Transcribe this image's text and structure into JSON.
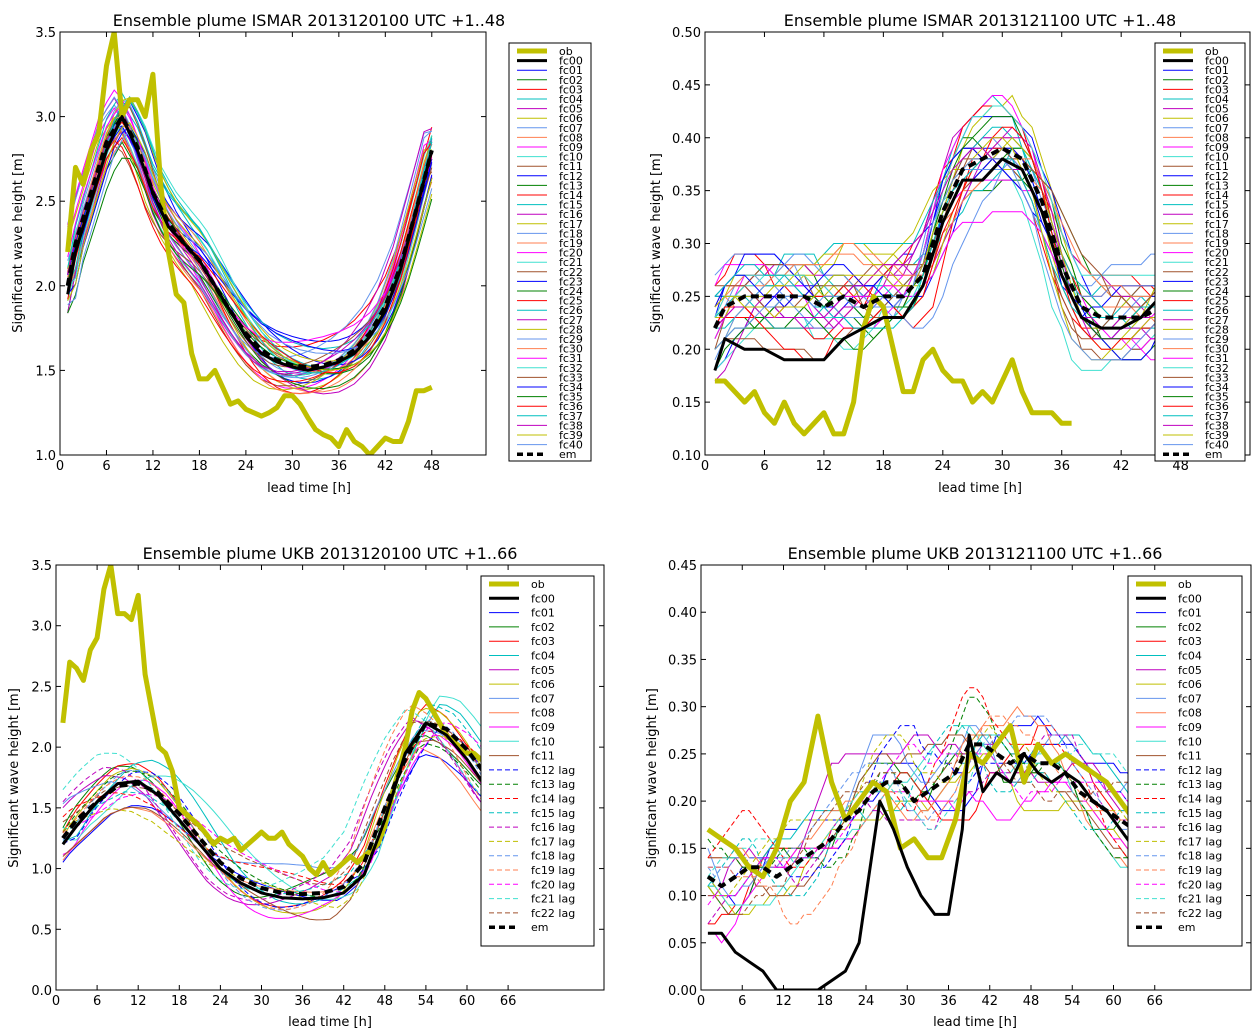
{
  "panels": [
    {
      "title": "Ensemble plume ISMAR 2013120100 UTC +1..48",
      "xlabel": "lead time [h]",
      "ylabel": "Significant wave height [m]",
      "xlim": [
        0,
        55
      ],
      "ylim": [
        1.0,
        3.5
      ],
      "xticks": [
        0,
        6,
        12,
        18,
        24,
        30,
        36,
        42,
        48
      ],
      "yticks": [
        "1.0",
        "1.5",
        "2.0",
        "2.5",
        "3.0",
        "3.5"
      ],
      "legend": [
        "ob",
        "fc00",
        "fc01",
        "fc02",
        "fc03",
        "fc04",
        "fc05",
        "fc06",
        "fc07",
        "fc08",
        "fc09",
        "fc10",
        "fc11",
        "fc12",
        "fc13",
        "fc14",
        "fc15",
        "fc16",
        "fc17",
        "fc18",
        "fc19",
        "fc20",
        "fc21",
        "fc22",
        "fc23",
        "fc24",
        "fc25",
        "fc26",
        "fc27",
        "fc28",
        "fc29",
        "fc30",
        "fc31",
        "fc32",
        "fc33",
        "fc34",
        "fc35",
        "fc36",
        "fc37",
        "fc38",
        "fc39",
        "fc40",
        "em"
      ]
    },
    {
      "title": "Ensemble plume ISMAR 2013121100 UTC +1..48",
      "xlabel": "lead time [h]",
      "ylabel": "Significant wave height [m]",
      "xlim": [
        0,
        55
      ],
      "ylim": [
        0.1,
        0.5
      ],
      "xticks": [
        0,
        6,
        12,
        18,
        24,
        30,
        36,
        42,
        48
      ],
      "yticks": [
        "0.10",
        "0.15",
        "0.20",
        "0.25",
        "0.30",
        "0.35",
        "0.40",
        "0.45",
        "0.50"
      ],
      "legend": [
        "ob",
        "fc00",
        "fc01",
        "fc02",
        "fc03",
        "fc04",
        "fc05",
        "fc06",
        "fc07",
        "fc08",
        "fc09",
        "fc10",
        "fc11",
        "fc12",
        "fc13",
        "fc14",
        "fc15",
        "fc16",
        "fc17",
        "fc18",
        "fc19",
        "fc20",
        "fc21",
        "fc22",
        "fc23",
        "fc24",
        "fc25",
        "fc26",
        "fc27",
        "fc28",
        "fc29",
        "fc30",
        "fc31",
        "fc32",
        "fc33",
        "fc34",
        "fc35",
        "fc36",
        "fc37",
        "fc38",
        "fc39",
        "fc40",
        "em"
      ]
    },
    {
      "title": "Ensemble plume UKB 2013120100 UTC +1..66",
      "xlabel": "lead time [h]",
      "ylabel": "Significant wave height [m]",
      "xlim": [
        0,
        80
      ],
      "ylim": [
        0.0,
        3.5
      ],
      "xticks": [
        0,
        6,
        12,
        18,
        24,
        30,
        36,
        42,
        48,
        54,
        60,
        66
      ],
      "yticks": [
        "0.0",
        "0.5",
        "1.0",
        "1.5",
        "2.0",
        "2.5",
        "3.0",
        "3.5"
      ],
      "legend": [
        "ob",
        "fc00",
        "fc01",
        "fc02",
        "fc03",
        "fc04",
        "fc05",
        "fc06",
        "fc07",
        "fc08",
        "fc09",
        "fc10",
        "fc11",
        "fc12 lag",
        "fc13 lag",
        "fc14 lag",
        "fc15 lag",
        "fc16 lag",
        "fc17 lag",
        "fc18 lag",
        "fc19 lag",
        "fc20 lag",
        "fc21 lag",
        "fc22 lag",
        "em"
      ]
    },
    {
      "title": "Ensemble plume UKB 2013121100 UTC +1..66",
      "xlabel": "lead time [h]",
      "ylabel": "Significant wave height [m]",
      "xlim": [
        0,
        80
      ],
      "ylim": [
        0.0,
        0.45
      ],
      "xticks": [
        0,
        6,
        12,
        18,
        24,
        30,
        36,
        42,
        48,
        54,
        60,
        66
      ],
      "yticks": [
        "0.00",
        "0.05",
        "0.10",
        "0.15",
        "0.20",
        "0.25",
        "0.30",
        "0.35",
        "0.40",
        "0.45"
      ],
      "legend": [
        "ob",
        "fc00",
        "fc01",
        "fc02",
        "fc03",
        "fc04",
        "fc05",
        "fc06",
        "fc07",
        "fc08",
        "fc09",
        "fc10",
        "fc11",
        "fc12 lag",
        "fc13 lag",
        "fc14 lag",
        "fc15 lag",
        "fc16 lag",
        "fc17 lag",
        "fc18 lag",
        "fc19 lag",
        "fc20 lag",
        "fc21 lag",
        "fc22 lag",
        "em"
      ]
    }
  ],
  "colors": {
    "cycle": [
      "#0000ff",
      "#008000",
      "#ff0000",
      "#00bfbf",
      "#bf00bf",
      "#bfbf00",
      "#6495ed",
      "#ff7f50",
      "#ff00ff",
      "#40e0d0",
      "#a0522d"
    ],
    "ob": "#c0c000",
    "fc00": "#000000",
    "em": "#000000"
  },
  "chart_data": [
    {
      "type": "line",
      "title": "Ensemble plume ISMAR 2013120100 UTC +1..48",
      "xlabel": "lead time [h]",
      "ylabel": "Significant wave height [m]",
      "xlim": [
        0,
        55
      ],
      "ylim": [
        1.0,
        3.5
      ],
      "legend_position": "right",
      "members": 41,
      "member_prefix": "fc",
      "ob": {
        "x": [
          1,
          2,
          3,
          4,
          5,
          6,
          7,
          8,
          9,
          10,
          11,
          12,
          13,
          14,
          15,
          16,
          17,
          18,
          19,
          20,
          21,
          22,
          23,
          24,
          25,
          26,
          27,
          28,
          29,
          30,
          31,
          32,
          33,
          34,
          35,
          36,
          37,
          38,
          39,
          40,
          41,
          42,
          43,
          44,
          45,
          46,
          47,
          48
        ],
        "y": [
          2.2,
          2.7,
          2.6,
          2.8,
          2.9,
          3.3,
          3.5,
          3.0,
          3.1,
          3.1,
          3.0,
          3.25,
          2.6,
          2.2,
          1.95,
          1.9,
          1.6,
          1.45,
          1.45,
          1.5,
          1.4,
          1.3,
          1.32,
          1.27,
          1.25,
          1.23,
          1.25,
          1.28,
          1.35,
          1.35,
          1.3,
          1.22,
          1.15,
          1.12,
          1.1,
          1.05,
          1.15,
          1.08,
          1.05,
          1.0,
          1.05,
          1.1,
          1.08,
          1.08,
          1.2,
          1.38,
          1.38,
          1.4
        ]
      },
      "fc00": {
        "x": [
          1,
          2,
          4,
          6,
          8,
          10,
          12,
          14,
          16,
          18,
          20,
          22,
          24,
          26,
          28,
          30,
          32,
          34,
          36,
          38,
          40,
          42,
          44,
          46,
          48
        ],
        "y": [
          1.95,
          2.2,
          2.5,
          2.8,
          3.0,
          2.8,
          2.55,
          2.35,
          2.25,
          2.15,
          2.0,
          1.85,
          1.7,
          1.6,
          1.55,
          1.52,
          1.5,
          1.52,
          1.55,
          1.6,
          1.7,
          1.85,
          2.1,
          2.45,
          2.8
        ]
      },
      "em": {
        "x": [
          1,
          2,
          4,
          6,
          8,
          10,
          12,
          14,
          16,
          18,
          20,
          22,
          24,
          26,
          28,
          30,
          32,
          34,
          36,
          38,
          40,
          42,
          44,
          46,
          48
        ],
        "y": [
          2.0,
          2.25,
          2.55,
          2.85,
          3.0,
          2.82,
          2.55,
          2.37,
          2.25,
          2.15,
          2.0,
          1.85,
          1.72,
          1.62,
          1.56,
          1.53,
          1.52,
          1.53,
          1.56,
          1.62,
          1.72,
          1.88,
          2.12,
          2.45,
          2.8
        ]
      }
    },
    {
      "type": "line",
      "title": "Ensemble plume ISMAR 2013121100 UTC +1..48",
      "xlabel": "lead time [h]",
      "ylabel": "Significant wave height [m]",
      "xlim": [
        0,
        55
      ],
      "ylim": [
        0.1,
        0.5
      ],
      "legend_position": "right",
      "members": 41,
      "member_prefix": "fc",
      "ob": {
        "x": [
          1,
          2,
          3,
          4,
          5,
          6,
          7,
          8,
          9,
          10,
          11,
          12,
          13,
          14,
          15,
          16,
          17,
          18,
          19,
          20,
          21,
          22,
          23,
          24,
          25,
          26,
          27,
          28,
          29,
          30,
          31,
          32,
          33,
          34,
          35,
          36,
          37
        ],
        "y": [
          0.17,
          0.17,
          0.16,
          0.15,
          0.16,
          0.14,
          0.13,
          0.15,
          0.13,
          0.12,
          0.13,
          0.14,
          0.12,
          0.12,
          0.15,
          0.22,
          0.25,
          0.24,
          0.2,
          0.16,
          0.16,
          0.19,
          0.2,
          0.18,
          0.17,
          0.17,
          0.15,
          0.16,
          0.15,
          0.17,
          0.19,
          0.16,
          0.14,
          0.14,
          0.14,
          0.13,
          0.13
        ]
      },
      "fc00": {
        "x": [
          1,
          2,
          4,
          6,
          8,
          10,
          12,
          14,
          16,
          18,
          20,
          22,
          24,
          26,
          28,
          30,
          32,
          34,
          36,
          38,
          40,
          42,
          44,
          46,
          48
        ],
        "y": [
          0.18,
          0.21,
          0.2,
          0.2,
          0.19,
          0.19,
          0.19,
          0.21,
          0.22,
          0.23,
          0.23,
          0.26,
          0.32,
          0.36,
          0.36,
          0.38,
          0.37,
          0.33,
          0.27,
          0.23,
          0.22,
          0.22,
          0.23,
          0.25,
          0.32
        ]
      },
      "em": {
        "x": [
          1,
          2,
          4,
          6,
          8,
          10,
          12,
          14,
          16,
          18,
          20,
          22,
          24,
          26,
          28,
          30,
          32,
          34,
          36,
          38,
          40,
          42,
          44,
          46,
          48
        ],
        "y": [
          0.22,
          0.24,
          0.25,
          0.25,
          0.25,
          0.25,
          0.24,
          0.25,
          0.24,
          0.25,
          0.25,
          0.27,
          0.33,
          0.37,
          0.38,
          0.39,
          0.38,
          0.34,
          0.28,
          0.24,
          0.23,
          0.23,
          0.23,
          0.24,
          0.25
        ]
      }
    },
    {
      "type": "line",
      "title": "Ensemble plume UKB 2013120100 UTC +1..66",
      "xlabel": "lead time [h]",
      "ylabel": "Significant wave height [m]",
      "xlim": [
        0,
        80
      ],
      "ylim": [
        0.0,
        3.5
      ],
      "legend_position": "right",
      "members": 23,
      "lag_from": 12,
      "member_prefix": "fc",
      "ob": {
        "x": [
          1,
          2,
          3,
          4,
          5,
          6,
          7,
          8,
          9,
          10,
          11,
          12,
          13,
          14,
          15,
          16,
          17,
          18,
          19,
          20,
          21,
          22,
          23,
          24,
          25,
          26,
          27,
          28,
          29,
          30,
          31,
          32,
          33,
          34,
          35,
          36,
          37,
          38,
          39,
          40,
          41,
          42,
          43,
          44,
          45,
          46,
          47,
          48,
          49,
          50,
          51,
          52,
          53,
          54,
          55,
          56,
          57,
          58,
          59,
          60,
          61,
          62,
          63,
          64,
          65,
          66
        ],
        "y": [
          2.2,
          2.7,
          2.65,
          2.55,
          2.8,
          2.9,
          3.3,
          3.5,
          3.1,
          3.1,
          3.05,
          3.25,
          2.6,
          2.3,
          2.0,
          1.95,
          1.8,
          1.5,
          1.45,
          1.4,
          1.35,
          1.28,
          1.2,
          1.25,
          1.22,
          1.25,
          1.15,
          1.2,
          1.25,
          1.3,
          1.25,
          1.25,
          1.3,
          1.2,
          1.15,
          1.1,
          1.0,
          0.95,
          1.05,
          0.95,
          1.0,
          1.05,
          1.1,
          1.05,
          1.1,
          1.15,
          1.2,
          1.35,
          1.6,
          1.8,
          2.0,
          2.3,
          2.45,
          2.4,
          2.3,
          2.2,
          2.1,
          2.05,
          2.0,
          1.95,
          1.95,
          1.9,
          1.9,
          1.85,
          1.8,
          1.8
        ]
      },
      "fc00": {
        "x": [
          1,
          3,
          6,
          9,
          12,
          15,
          18,
          21,
          24,
          27,
          30,
          33,
          36,
          39,
          42,
          45,
          48,
          51,
          54,
          57,
          60,
          63,
          66
        ],
        "y": [
          1.2,
          1.35,
          1.55,
          1.7,
          1.72,
          1.6,
          1.4,
          1.2,
          1.0,
          0.88,
          0.8,
          0.76,
          0.75,
          0.76,
          0.8,
          0.95,
          1.4,
          1.95,
          2.2,
          2.1,
          1.9,
          1.65,
          1.4
        ]
      },
      "em": {
        "x": [
          1,
          3,
          6,
          9,
          12,
          15,
          18,
          21,
          24,
          27,
          30,
          33,
          36,
          39,
          42,
          45,
          48,
          51,
          54,
          57,
          60,
          63,
          66
        ],
        "y": [
          1.25,
          1.4,
          1.55,
          1.68,
          1.7,
          1.62,
          1.45,
          1.25,
          1.05,
          0.92,
          0.84,
          0.8,
          0.79,
          0.8,
          0.85,
          1.05,
          1.5,
          1.9,
          2.2,
          2.15,
          1.98,
          1.75,
          1.55
        ]
      }
    },
    {
      "type": "line",
      "title": "Ensemble plume UKB 2013121100 UTC +1..66",
      "xlabel": "lead time [h]",
      "ylabel": "Significant wave height [m]",
      "xlim": [
        0,
        80
      ],
      "ylim": [
        0.0,
        0.45
      ],
      "legend_position": "right",
      "members": 23,
      "lag_from": 12,
      "member_prefix": "fc",
      "ob": {
        "x": [
          1,
          3,
          5,
          7,
          9,
          11,
          13,
          15,
          17,
          19,
          21,
          23,
          25,
          27,
          29,
          31,
          33,
          35,
          37,
          39,
          41,
          43,
          45,
          47,
          49,
          51,
          53,
          55,
          57,
          59,
          61,
          63,
          65,
          66
        ],
        "y": [
          0.17,
          0.16,
          0.15,
          0.13,
          0.12,
          0.15,
          0.2,
          0.22,
          0.29,
          0.22,
          0.18,
          0.2,
          0.22,
          0.21,
          0.15,
          0.16,
          0.14,
          0.14,
          0.18,
          0.25,
          0.24,
          0.26,
          0.28,
          0.22,
          0.26,
          0.24,
          0.25,
          0.24,
          0.23,
          0.22,
          0.2,
          0.18,
          0.27,
          0.27
        ]
      },
      "fc00": {
        "x": [
          1,
          3,
          5,
          7,
          9,
          11,
          13,
          15,
          17,
          19,
          21,
          23,
          24,
          26,
          28,
          30,
          32,
          34,
          36,
          38,
          39,
          41,
          43,
          45,
          47,
          49,
          51,
          53,
          55,
          57,
          59,
          61,
          63,
          65,
          66
        ],
        "y": [
          0.06,
          0.06,
          0.04,
          0.03,
          0.02,
          0.0,
          0.0,
          0.0,
          0.0,
          0.01,
          0.02,
          0.05,
          0.1,
          0.2,
          0.17,
          0.13,
          0.1,
          0.08,
          0.08,
          0.17,
          0.27,
          0.21,
          0.23,
          0.22,
          0.25,
          0.23,
          0.22,
          0.23,
          0.22,
          0.2,
          0.19,
          0.17,
          0.15,
          0.17,
          0.16
        ]
      },
      "em": {
        "x": [
          1,
          3,
          5,
          7,
          9,
          11,
          13,
          15,
          17,
          19,
          21,
          23,
          25,
          27,
          29,
          31,
          33,
          35,
          37,
          39,
          41,
          43,
          45,
          47,
          49,
          51,
          53,
          55,
          57,
          59,
          61,
          63,
          65,
          66
        ],
        "y": [
          0.12,
          0.11,
          0.12,
          0.13,
          0.13,
          0.12,
          0.13,
          0.14,
          0.15,
          0.16,
          0.18,
          0.19,
          0.21,
          0.22,
          0.22,
          0.2,
          0.21,
          0.22,
          0.23,
          0.26,
          0.26,
          0.25,
          0.24,
          0.25,
          0.24,
          0.24,
          0.23,
          0.21,
          0.2,
          0.19,
          0.18,
          0.17,
          0.16,
          0.16
        ]
      }
    }
  ]
}
